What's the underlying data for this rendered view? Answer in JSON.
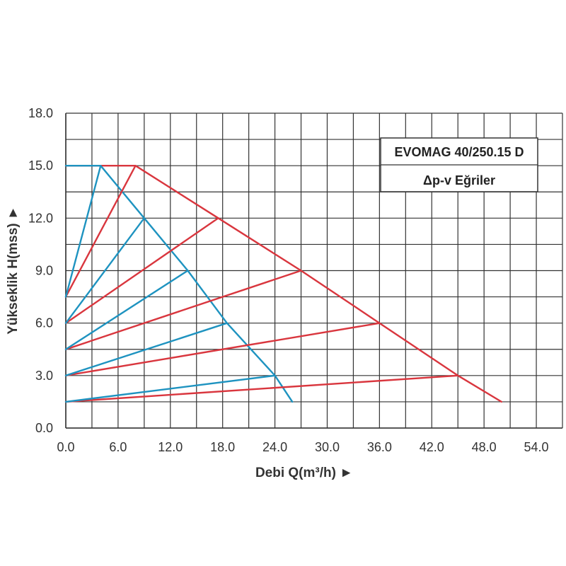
{
  "chart_data": {
    "type": "line",
    "title": "EVOMAG 40/250.15 D",
    "subtitle": "Δp-v Eğriler",
    "xlabel": "Debi Q(m³/h) ►",
    "ylabel": "Yükseklik H(mss) ►",
    "xlim": [
      0,
      57
    ],
    "ylim": [
      0,
      18
    ],
    "x_ticks": [
      "0.0",
      "6.0",
      "12.0",
      "18.0",
      "24.0",
      "30.0",
      "36.0",
      "42.0",
      "48.0",
      "54.0"
    ],
    "y_ticks": [
      "0.0",
      "3.0",
      "6.0",
      "9.0",
      "12.0",
      "15.0",
      "18.0"
    ],
    "grid": true,
    "colors": {
      "red": "#d9363e",
      "blue": "#1e93c0",
      "grid": "#333333"
    },
    "series": [
      {
        "color": "red",
        "points": [
          [
            0,
            15
          ],
          [
            8,
            15
          ],
          [
            17.5,
            12
          ],
          [
            27,
            9
          ],
          [
            36,
            6
          ],
          [
            45,
            3
          ],
          [
            50,
            1.5
          ]
        ]
      },
      {
        "color": "blue",
        "points": [
          [
            0,
            15
          ],
          [
            4,
            15
          ],
          [
            9,
            12
          ],
          [
            14,
            9
          ],
          [
            18.5,
            6
          ],
          [
            24,
            3
          ],
          [
            26,
            1.5
          ]
        ]
      },
      {
        "color": "red",
        "points": [
          [
            0,
            7.5
          ],
          [
            8,
            15
          ]
        ]
      },
      {
        "color": "red",
        "points": [
          [
            0,
            6
          ],
          [
            17.5,
            12
          ]
        ]
      },
      {
        "color": "red",
        "points": [
          [
            0,
            4.5
          ],
          [
            27,
            9
          ]
        ]
      },
      {
        "color": "red",
        "points": [
          [
            0,
            3
          ],
          [
            36,
            6
          ]
        ]
      },
      {
        "color": "red",
        "points": [
          [
            0,
            1.5
          ],
          [
            45,
            3
          ]
        ]
      },
      {
        "color": "blue",
        "points": [
          [
            0,
            7.5
          ],
          [
            4,
            15
          ]
        ]
      },
      {
        "color": "blue",
        "points": [
          [
            0,
            6
          ],
          [
            9,
            12
          ]
        ]
      },
      {
        "color": "blue",
        "points": [
          [
            0,
            4.5
          ],
          [
            14,
            9
          ]
        ]
      },
      {
        "color": "blue",
        "points": [
          [
            0,
            3
          ],
          [
            18.5,
            6
          ]
        ]
      },
      {
        "color": "blue",
        "points": [
          [
            0,
            1.5
          ],
          [
            24,
            3
          ]
        ]
      }
    ]
  }
}
